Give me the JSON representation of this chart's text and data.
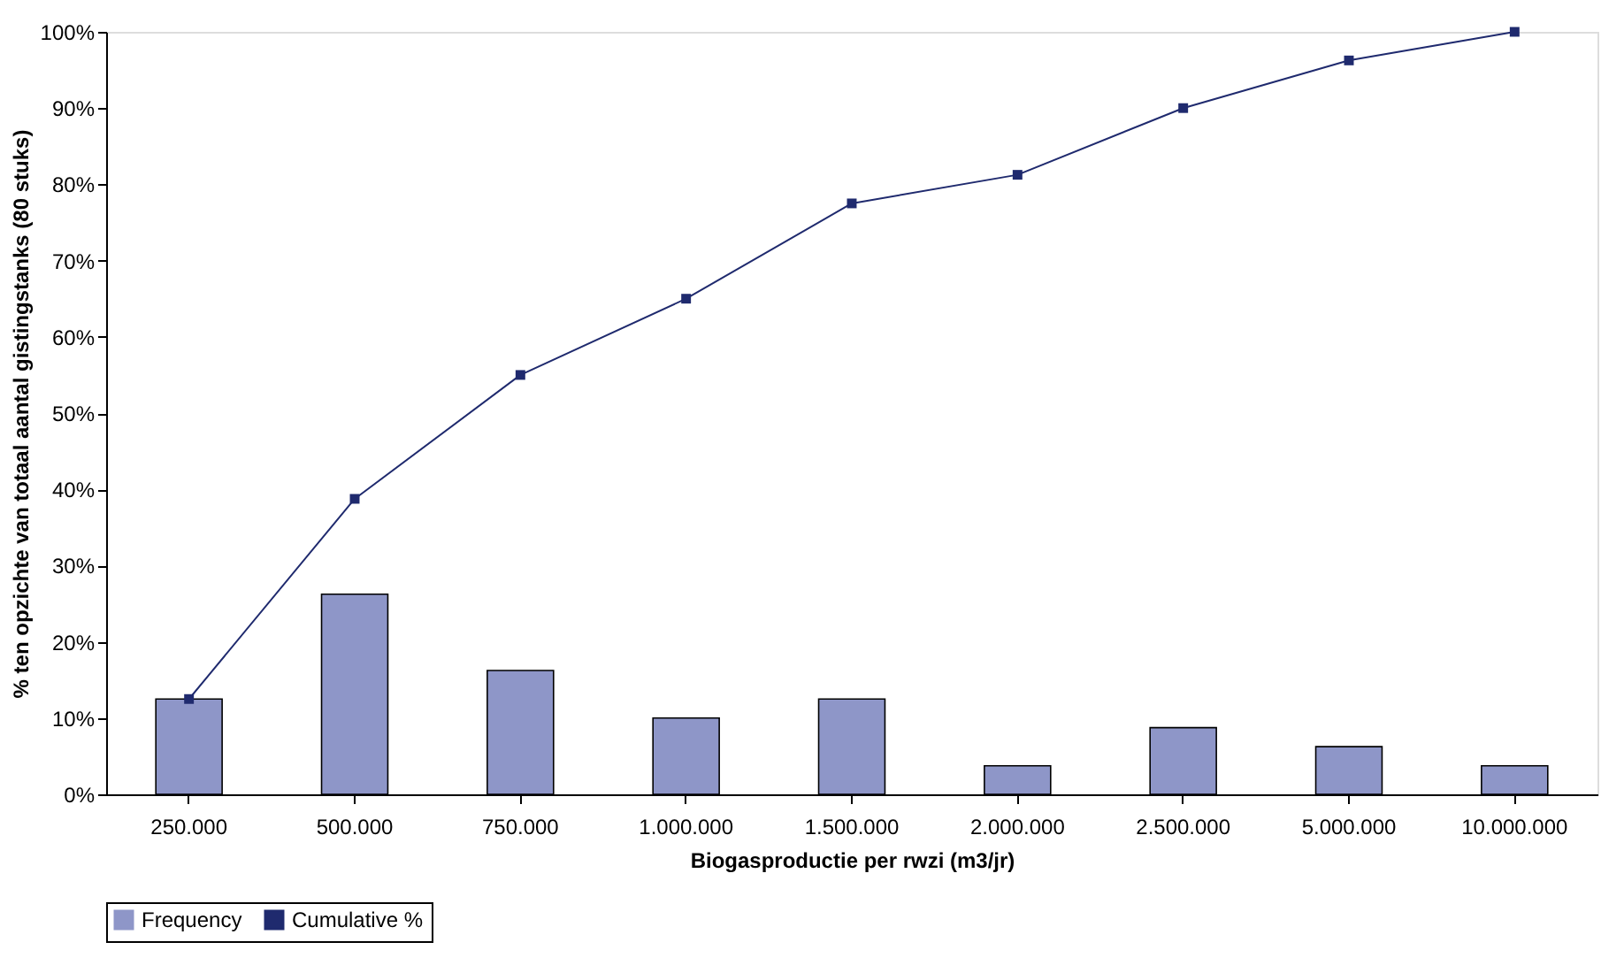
{
  "chart_data": {
    "type": "bar",
    "xlabel": "Biogasproductie per rwzi (m3/jr)",
    "ylabel": "% ten opzichte van totaal aantal gistingstanks (80 stuks)",
    "categories": [
      "250.000",
      "500.000",
      "750.000",
      "1.000.000",
      "1.500.000",
      "2.000.000",
      "2.500.000",
      "5.000.000",
      "10.000.000"
    ],
    "series": [
      {
        "name": "Frequency",
        "color": "#8e96c8",
        "values": [
          12.5,
          26.25,
          16.25,
          10,
          12.5,
          3.75,
          8.75,
          6.25,
          3.75
        ]
      },
      {
        "name": "Cumulative %",
        "type": "line",
        "color": "#1f2a6e",
        "marker": "square",
        "values": [
          12.5,
          38.75,
          55,
          65,
          77.5,
          81.25,
          90,
          96.25,
          100
        ]
      }
    ],
    "ylim": [
      0,
      100
    ],
    "yticks": [
      {
        "value": 0,
        "label": "0%"
      },
      {
        "value": 10,
        "label": "10%"
      },
      {
        "value": 20,
        "label": "20%"
      },
      {
        "value": 30,
        "label": "30%"
      },
      {
        "value": 40,
        "label": "40%"
      },
      {
        "value": 50,
        "label": "50%"
      },
      {
        "value": 60,
        "label": "60%"
      },
      {
        "value": 70,
        "label": "70%"
      },
      {
        "value": 80,
        "label": "80%"
      },
      {
        "value": 90,
        "label": "90%"
      },
      {
        "value": 100,
        "label": "100%"
      }
    ],
    "grid": false,
    "legend": "bottom"
  }
}
